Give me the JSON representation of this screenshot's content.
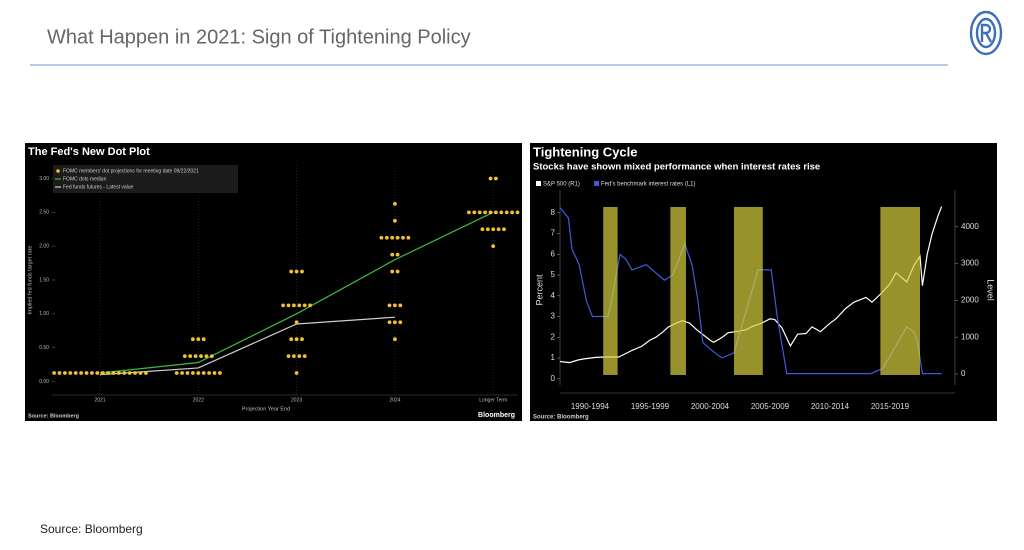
{
  "title": "What Happen in 2021: Sign of Tightening Policy",
  "source": "Source: Bloomberg",
  "chart_data": [
    {
      "type": "dot_plot",
      "title": "The Fed's New Dot Plot",
      "xlabel": "Projection Year End",
      "ylabel": "Implied fed funds target rate",
      "categories": [
        "2021",
        "2022",
        "2023",
        "2024",
        "Longer Term"
      ],
      "ylim": [
        -0.2,
        3.2
      ],
      "yticks": [
        {
          "value": 0,
          "label": "0.00"
        },
        {
          "value": 0.5,
          "label": "0.50"
        },
        {
          "value": 1,
          "label": "1.00"
        },
        {
          "value": 1.5,
          "label": "1.50"
        },
        {
          "value": 2,
          "label": "2.00"
        },
        {
          "value": 2.5,
          "label": "2.50"
        },
        {
          "value": 3,
          "label": "3.00"
        }
      ],
      "series": [
        {
          "name": "FOMC members' dot projections for meeting date 09/22/2021",
          "color": "#f2c12e",
          "points": [
            [
              {
                "y": 0.125,
                "count": 18
              }
            ],
            [
              {
                "y": 0.125,
                "count": 9
              },
              {
                "y": 0.375,
                "count": 6
              },
              {
                "y": 0.625,
                "count": 3
              }
            ],
            [
              {
                "y": 0.125,
                "count": 1
              },
              {
                "y": 0.375,
                "count": 4
              },
              {
                "y": 0.625,
                "count": 3
              },
              {
                "y": 0.875,
                "count": 1
              },
              {
                "y": 1.125,
                "count": 6
              },
              {
                "y": 1.625,
                "count": 3
              }
            ],
            [
              {
                "y": 0.625,
                "count": 1
              },
              {
                "y": 0.875,
                "count": 3
              },
              {
                "y": 1.125,
                "count": 3
              },
              {
                "y": 1.625,
                "count": 2
              },
              {
                "y": 1.875,
                "count": 2
              },
              {
                "y": 2.125,
                "count": 6
              },
              {
                "y": 2.375,
                "count": 1
              },
              {
                "y": 2.625,
                "count": 1
              }
            ],
            [
              {
                "y": 2.0,
                "count": 1
              },
              {
                "y": 2.25,
                "count": 5
              },
              {
                "y": 2.5,
                "count": 10
              },
              {
                "y": 3.0,
                "count": 2
              }
            ]
          ]
        },
        {
          "name": "FOMC dots median",
          "color": "#3dbb3d",
          "values": [
            0.125,
            0.28,
            1.0,
            1.8,
            2.5
          ]
        },
        {
          "name": "Fed funds futures - Latest value",
          "color": "#cfcfcf",
          "values": [
            0.1,
            0.2,
            0.85,
            0.95,
            null
          ]
        }
      ],
      "source": "Source: Bloomberg",
      "logo_text": "Bloomberg"
    },
    {
      "type": "line",
      "title": "Tightening Cycle",
      "subtitle": "Stocks have shown mixed performance when interest rates rise",
      "ylabel": "Percent",
      "y2label": "Level",
      "xlim": [
        1990,
        2022
      ],
      "xticks": [
        {
          "value": 1992.5,
          "label": "1990-1994"
        },
        {
          "value": 1997.5,
          "label": "1995-1999"
        },
        {
          "value": 2002.5,
          "label": "2000-2004"
        },
        {
          "value": 2007.5,
          "label": "2005-2009"
        },
        {
          "value": 2012.5,
          "label": "2010-2014"
        },
        {
          "value": 2017.5,
          "label": "2015-2019"
        }
      ],
      "ylim": [
        -0.3,
        9.1
      ],
      "yticks": [
        0,
        1,
        2,
        3,
        4,
        5,
        6,
        7,
        8
      ],
      "y2lim": [
        -300,
        5000
      ],
      "y2ticks": [
        0,
        1000,
        2000,
        3000,
        4000
      ],
      "shaded_periods": [
        [
          1993.6,
          1994.8
        ],
        [
          1999.2,
          2000.5
        ],
        [
          2004.5,
          2006.9
        ],
        [
          2016.7,
          2020.0
        ]
      ],
      "shade_color": "#d8d040",
      "series": [
        {
          "name": "S&P 500 (R1)",
          "color": "#ffffff",
          "axis": "y2",
          "x": [
            1990,
            1990.8,
            1991.5,
            1992,
            1993,
            1994,
            1994.9,
            1995.5,
            1996,
            1996.8,
            1997.5,
            1998,
            1998.6,
            1999,
            1999.6,
            2000.2,
            2000.8,
            2001.4,
            2001.8,
            2002.5,
            2002.8,
            2003.5,
            2004,
            2004.8,
            2005.5,
            2006,
            2006.8,
            2007.5,
            2007.9,
            2008.5,
            2009.2,
            2009.8,
            2010.5,
            2011,
            2011.7,
            2012.5,
            2013,
            2013.8,
            2014.5,
            2015.5,
            2016,
            2016.8,
            2017.5,
            2018,
            2018.9,
            2019.5,
            2020,
            2020.2,
            2020.6,
            2021,
            2021.5,
            2021.8
          ],
          "values": [
            340,
            310,
            380,
            410,
            450,
            465,
            460,
            560,
            640,
            750,
            920,
            1000,
            1150,
            1270,
            1370,
            1450,
            1380,
            1200,
            1100,
            920,
            860,
            990,
            1120,
            1160,
            1200,
            1290,
            1380,
            1500,
            1480,
            1250,
            760,
            1080,
            1100,
            1280,
            1150,
            1380,
            1500,
            1780,
            1950,
            2080,
            1950,
            2200,
            2450,
            2750,
            2500,
            2950,
            3200,
            2400,
            3250,
            3800,
            4300,
            4550
          ]
        },
        {
          "name": "Fed's benchmark interest rates (L1)",
          "color": "#3b5bdb",
          "x": [
            1990,
            1990.7,
            1991,
            1991.6,
            1992.2,
            1992.7,
            1994,
            1994.3,
            1994.6,
            1995,
            1995.5,
            1996,
            1997.2,
            1998.7,
            1999.4,
            2000.4,
            2001,
            2001.5,
            2001.9,
            2002.9,
            2003.5,
            2004.5,
            2005.5,
            2006.5,
            2007.6,
            2008.1,
            2008.9,
            2015.9,
            2016.9,
            2017.9,
            2018.9,
            2019.5,
            2019.8,
            2020.2,
            2021.8
          ],
          "values": [
            8.25,
            7.75,
            6.25,
            5.5,
            3.75,
            3.0,
            3.0,
            3.75,
            4.75,
            6.0,
            5.75,
            5.25,
            5.5,
            4.75,
            5.0,
            6.5,
            5.5,
            3.75,
            1.75,
            1.25,
            1.0,
            1.25,
            3.25,
            5.25,
            5.25,
            3.0,
            0.25,
            0.25,
            0.5,
            1.5,
            2.5,
            2.25,
            1.75,
            0.25,
            0.25
          ]
        }
      ],
      "source": "Source: Bloomberg"
    }
  ]
}
